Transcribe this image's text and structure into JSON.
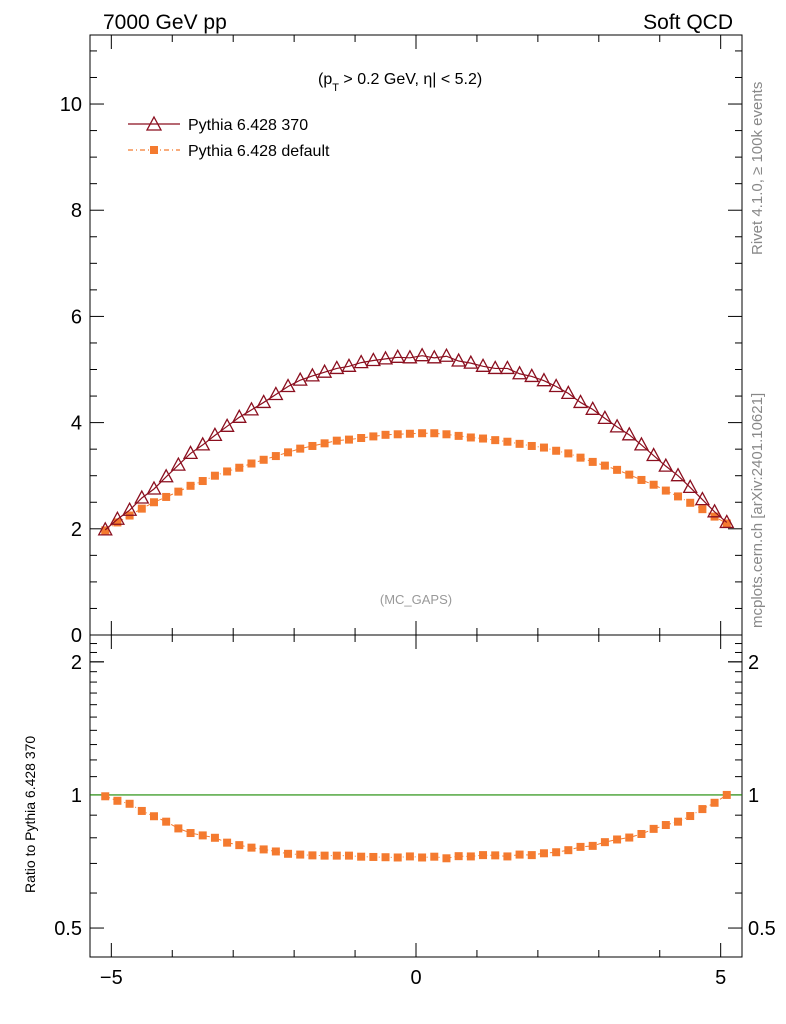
{
  "header": {
    "left": "7000 GeV pp",
    "right": "Soft QCD"
  },
  "side_labels": {
    "rivet": "Rivet 4.1.0, ≥ 100k events",
    "mcplots": "mcplots.cern.ch [arXiv:2401.10621]"
  },
  "chart_data": [
    {
      "type": "scatter",
      "panel": "main",
      "title": "(p_T > 0.2 GeV, |η| < 5.2)",
      "title_parts": {
        "p": "(p",
        "sub": "T",
        "rest": " > 0.2 GeV, η| < 5.2)"
      },
      "watermark": "(MC_GAPS)",
      "xlim": [
        -5.35,
        5.35
      ],
      "ylim": [
        0,
        11.3
      ],
      "yticks": [
        "0",
        "2",
        "4",
        "6",
        "8",
        "10"
      ],
      "legend_position": "top-left",
      "x": [
        -5.1,
        -4.9,
        -4.7,
        -4.5,
        -4.3,
        -4.1,
        -3.9,
        -3.7,
        -3.5,
        -3.3,
        -3.1,
        -2.9,
        -2.7,
        -2.5,
        -2.3,
        -2.1,
        -1.9,
        -1.7,
        -1.5,
        -1.3,
        -1.1,
        -0.9,
        -0.7,
        -0.5,
        -0.3,
        -0.1,
        0.1,
        0.3,
        0.5,
        0.7,
        0.9,
        1.1,
        1.3,
        1.5,
        1.7,
        1.9,
        2.1,
        2.3,
        2.5,
        2.7,
        2.9,
        3.1,
        3.3,
        3.5,
        3.7,
        3.9,
        4.1,
        4.3,
        4.5,
        4.7,
        4.9,
        5.1
      ],
      "series": [
        {
          "name": "Pythia 6.428 370",
          "color": "#8b0f1f",
          "marker": "open-triangle",
          "values": [
            1.98,
            2.18,
            2.35,
            2.58,
            2.75,
            2.98,
            3.2,
            3.42,
            3.58,
            3.76,
            3.93,
            4.1,
            4.24,
            4.38,
            4.53,
            4.68,
            4.8,
            4.88,
            4.95,
            5.02,
            5.06,
            5.13,
            5.17,
            5.2,
            5.23,
            5.22,
            5.26,
            5.22,
            5.25,
            5.16,
            5.12,
            5.06,
            5.02,
            5.02,
            4.92,
            4.87,
            4.79,
            4.68,
            4.55,
            4.38,
            4.25,
            4.08,
            3.92,
            3.77,
            3.58,
            3.38,
            3.18,
            3.0,
            2.78,
            2.55,
            2.32,
            2.12
          ]
        },
        {
          "name": "Pythia 6.428 default",
          "color": "#f47a2f",
          "marker": "filled-square",
          "values": [
            1.97,
            2.12,
            2.25,
            2.38,
            2.5,
            2.6,
            2.7,
            2.81,
            2.9,
            3.0,
            3.08,
            3.15,
            3.23,
            3.3,
            3.37,
            3.44,
            3.51,
            3.56,
            3.61,
            3.66,
            3.68,
            3.71,
            3.74,
            3.77,
            3.78,
            3.79,
            3.8,
            3.8,
            3.78,
            3.75,
            3.72,
            3.7,
            3.67,
            3.64,
            3.6,
            3.56,
            3.53,
            3.47,
            3.42,
            3.34,
            3.26,
            3.19,
            3.11,
            3.02,
            2.92,
            2.83,
            2.72,
            2.61,
            2.49,
            2.37,
            2.23,
            2.1
          ]
        }
      ]
    },
    {
      "type": "scatter",
      "panel": "ratio",
      "ylabel": "Ratio to Pythia 6.428 370",
      "xlim": [
        -5.35,
        5.35
      ],
      "ylim": [
        0.43,
        2.3
      ],
      "ylog": true,
      "yticks": [
        "0.5",
        "1",
        "2"
      ],
      "xticks": [
        "−5",
        "0",
        "5"
      ],
      "xtick_values": [
        -5,
        0,
        5
      ],
      "reference_line": 1.0,
      "x": [
        -5.1,
        -4.9,
        -4.7,
        -4.5,
        -4.3,
        -4.1,
        -3.9,
        -3.7,
        -3.5,
        -3.3,
        -3.1,
        -2.9,
        -2.7,
        -2.5,
        -2.3,
        -2.1,
        -1.9,
        -1.7,
        -1.5,
        -1.3,
        -1.1,
        -0.9,
        -0.7,
        -0.5,
        -0.3,
        -0.1,
        0.1,
        0.3,
        0.5,
        0.7,
        0.9,
        1.1,
        1.3,
        1.5,
        1.7,
        1.9,
        2.1,
        2.3,
        2.5,
        2.7,
        2.9,
        3.1,
        3.3,
        3.5,
        3.7,
        3.9,
        4.1,
        4.3,
        4.5,
        4.7,
        4.9,
        5.1
      ],
      "series": [
        {
          "name": "Pythia 6.428 default",
          "color": "#f47a2f",
          "values": [
            0.993,
            0.97,
            0.955,
            0.92,
            0.895,
            0.87,
            0.84,
            0.82,
            0.81,
            0.8,
            0.78,
            0.77,
            0.76,
            0.753,
            0.745,
            0.736,
            0.733,
            0.73,
            0.729,
            0.729,
            0.729,
            0.725,
            0.724,
            0.723,
            0.722,
            0.726,
            0.722,
            0.725,
            0.719,
            0.727,
            0.726,
            0.731,
            0.73,
            0.726,
            0.733,
            0.731,
            0.738,
            0.742,
            0.75,
            0.763,
            0.767,
            0.782,
            0.793,
            0.801,
            0.816,
            0.838,
            0.855,
            0.87,
            0.896,
            0.929,
            0.96,
            1.0
          ]
        }
      ]
    }
  ]
}
